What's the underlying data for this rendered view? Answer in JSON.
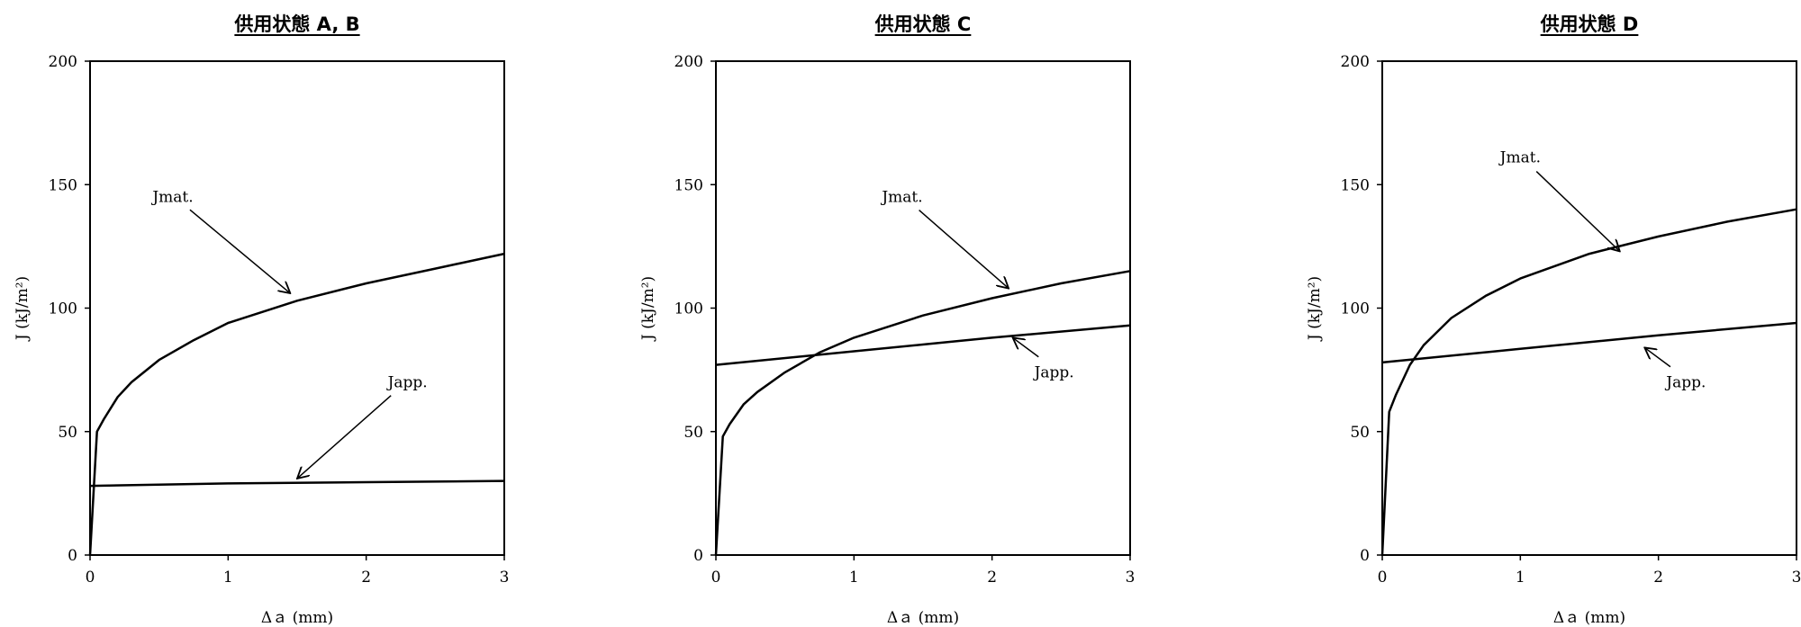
{
  "chart_data": [
    {
      "type": "line",
      "title": "供用状態 A, B",
      "xlabel": "Δａ (mm)",
      "ylabel": "J (kJ/m²)",
      "xlim": [
        0,
        3
      ],
      "ylim": [
        0,
        200
      ],
      "xticks": [
        "0",
        "1",
        "2",
        "3"
      ],
      "yticks": [
        "0",
        "50",
        "100",
        "150",
        "200"
      ],
      "grid": false,
      "series": [
        {
          "name": "Jmat.",
          "color": "#000000",
          "points": [
            [
              0,
              0
            ],
            [
              0.05,
              50
            ],
            [
              0.1,
              55
            ],
            [
              0.2,
              64
            ],
            [
              0.3,
              70
            ],
            [
              0.5,
              79
            ],
            [
              0.75,
              87
            ],
            [
              1.0,
              94
            ],
            [
              1.5,
              103
            ],
            [
              2.0,
              110
            ],
            [
              2.5,
              116
            ],
            [
              3.0,
              122
            ]
          ]
        },
        {
          "name": "Japp.",
          "color": "#000000",
          "points": [
            [
              0,
              28
            ],
            [
              1,
              29
            ],
            [
              2,
              29.5
            ],
            [
              3,
              30
            ]
          ]
        }
      ],
      "annotations": [
        {
          "text": "Jmat.",
          "target": [
            1.45,
            106
          ],
          "label_at": [
            0.6,
            143
          ]
        },
        {
          "text": "Japp.",
          "target": [
            1.5,
            31
          ],
          "label_at": [
            2.3,
            68
          ]
        }
      ]
    },
    {
      "type": "line",
      "title": "供用状態 C",
      "xlabel": "Δａ (mm)",
      "ylabel": "J (kJ/m²)",
      "xlim": [
        0,
        3
      ],
      "ylim": [
        0,
        200
      ],
      "xticks": [
        "0",
        "1",
        "2",
        "3"
      ],
      "yticks": [
        "0",
        "50",
        "100",
        "150",
        "200"
      ],
      "grid": false,
      "series": [
        {
          "name": "Jmat.",
          "color": "#000000",
          "points": [
            [
              0,
              0
            ],
            [
              0.05,
              48
            ],
            [
              0.1,
              53
            ],
            [
              0.2,
              61
            ],
            [
              0.3,
              66
            ],
            [
              0.5,
              74
            ],
            [
              0.75,
              82
            ],
            [
              1.0,
              88
            ],
            [
              1.5,
              97
            ],
            [
              2.0,
              104
            ],
            [
              2.5,
              110
            ],
            [
              3.0,
              115
            ]
          ]
        },
        {
          "name": "Japp.",
          "color": "#000000",
          "points": [
            [
              0,
              77
            ],
            [
              1,
              82.5
            ],
            [
              2,
              88
            ],
            [
              3,
              93
            ]
          ]
        }
      ],
      "annotations": [
        {
          "text": "Jmat.",
          "target": [
            2.12,
            108
          ],
          "label_at": [
            1.35,
            143
          ]
        },
        {
          "text": "Japp.",
          "target": [
            2.15,
            88
          ],
          "label_at": [
            2.45,
            72
          ]
        }
      ]
    },
    {
      "type": "line",
      "title": "供用状態 D",
      "xlabel": "Δａ (mm)",
      "ylabel": "J (kJ/m²)",
      "xlim": [
        0,
        3
      ],
      "ylim": [
        0,
        200
      ],
      "xticks": [
        "0",
        "1",
        "2",
        "3"
      ],
      "yticks": [
        "0",
        "50",
        "100",
        "150",
        "200"
      ],
      "grid": false,
      "series": [
        {
          "name": "Jmat.",
          "color": "#000000",
          "points": [
            [
              0,
              0
            ],
            [
              0.05,
              58
            ],
            [
              0.1,
              65
            ],
            [
              0.2,
              77
            ],
            [
              0.3,
              85
            ],
            [
              0.5,
              96
            ],
            [
              0.75,
              105
            ],
            [
              1.0,
              112
            ],
            [
              1.5,
              122
            ],
            [
              2.0,
              129
            ],
            [
              2.5,
              135
            ],
            [
              3.0,
              140
            ]
          ]
        },
        {
          "name": "Japp.",
          "color": "#000000",
          "points": [
            [
              0,
              78
            ],
            [
              1,
              83.5
            ],
            [
              2,
              89
            ],
            [
              3,
              94
            ]
          ]
        }
      ],
      "annotations": [
        {
          "text": "Jmat.",
          "target": [
            1.72,
            123
          ],
          "label_at": [
            1.0,
            159
          ]
        },
        {
          "text": "Japp.",
          "target": [
            1.9,
            84
          ],
          "label_at": [
            2.2,
            68
          ]
        }
      ]
    }
  ]
}
